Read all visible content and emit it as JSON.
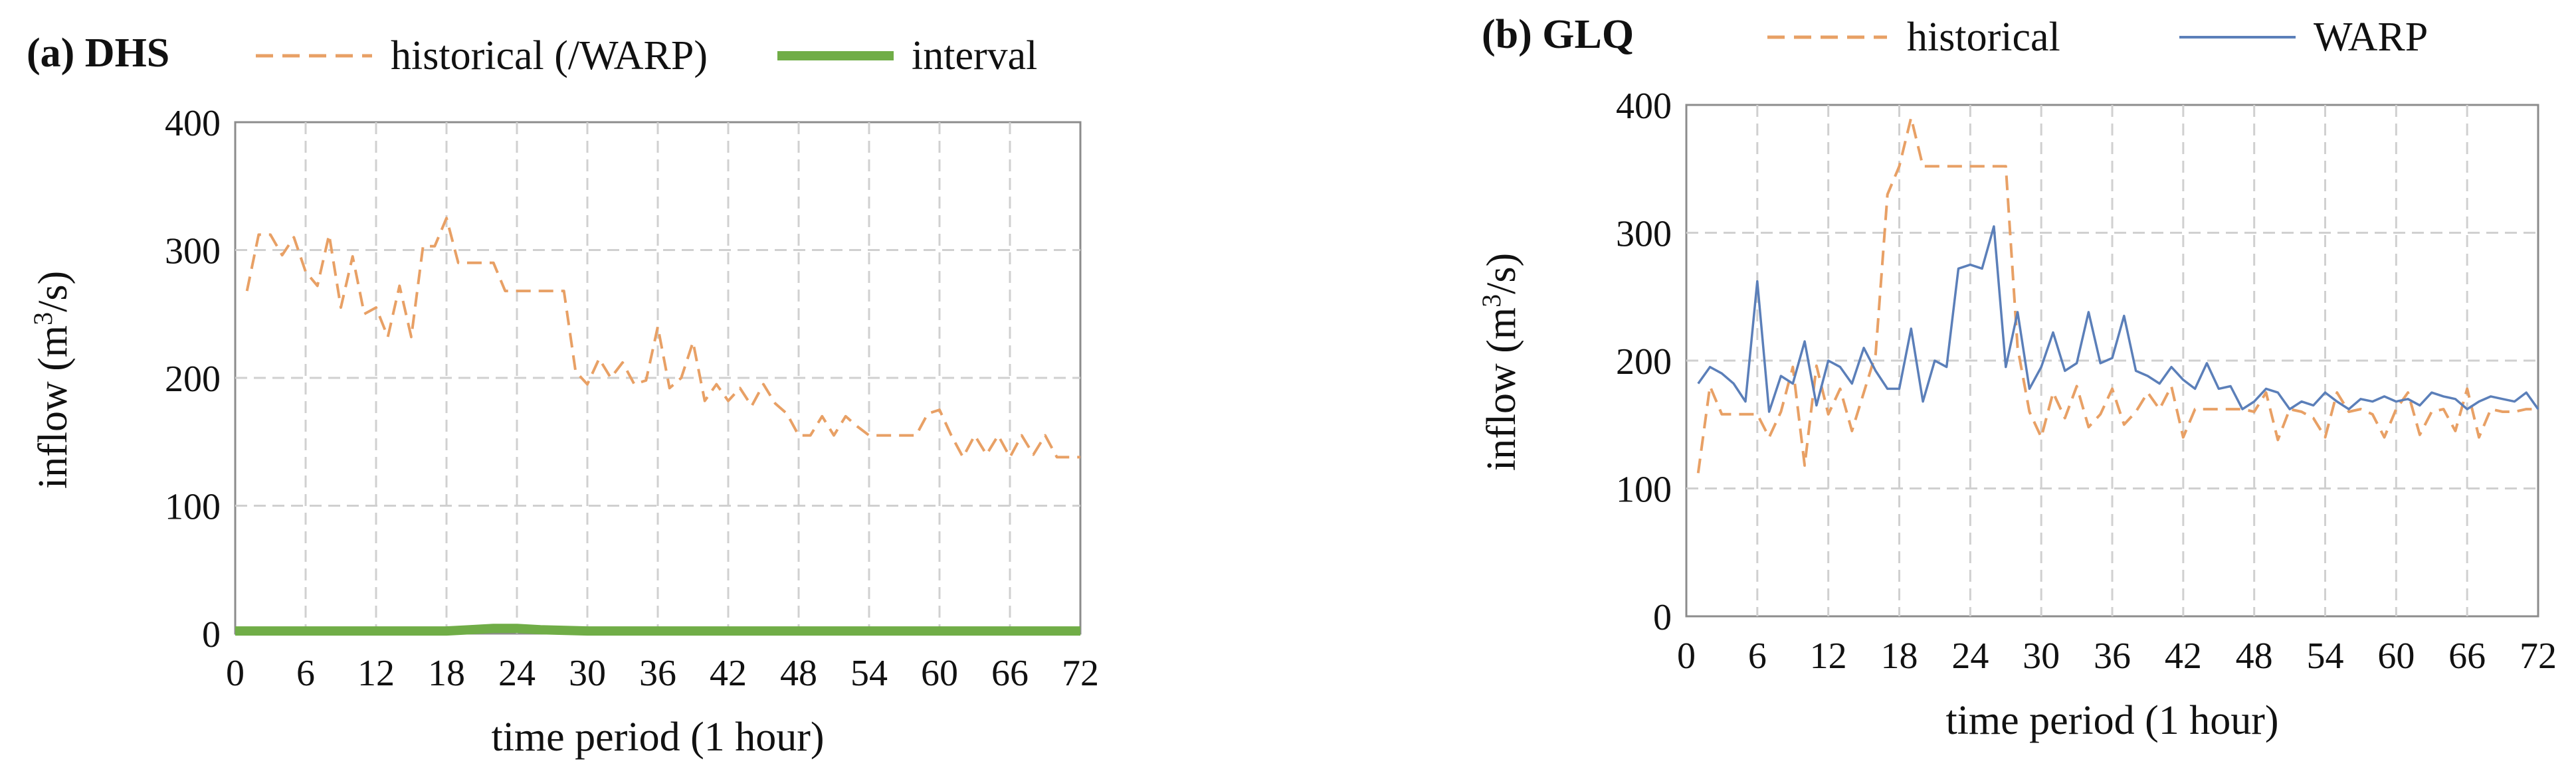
{
  "chart_data": [
    {
      "type": "line",
      "title": "(a) DHS",
      "xlabel": "time period (1 hour)",
      "ylabel_main": "inflow (m",
      "ylabel_sup": "3",
      "ylabel_end": "/s)",
      "xlim": [
        0,
        72
      ],
      "ylim": [
        0,
        400
      ],
      "xticks": [
        0,
        6,
        12,
        18,
        24,
        30,
        36,
        42,
        48,
        54,
        60,
        66,
        72
      ],
      "yticks": [
        0,
        100,
        200,
        300,
        400
      ],
      "grid": true,
      "legend_position": "top",
      "series": [
        {
          "name": "historical (/WARP)",
          "style": "dashed",
          "color": "#e8a065",
          "x": [
            1,
            2,
            3,
            4,
            5,
            6,
            7,
            8,
            9,
            10,
            11,
            12,
            13,
            14,
            15,
            16,
            17,
            18,
            19,
            20,
            21,
            22,
            23,
            24,
            25,
            26,
            27,
            28,
            29,
            30,
            31,
            32,
            33,
            34,
            35,
            36,
            37,
            38,
            39,
            40,
            41,
            42,
            43,
            44,
            45,
            46,
            47,
            48,
            49,
            50,
            51,
            52,
            53,
            54,
            55,
            56,
            57,
            58,
            59,
            60,
            61,
            62,
            63,
            64,
            65,
            66,
            67,
            68,
            69,
            70,
            71,
            72
          ],
          "values": [
            268,
            312,
            312,
            296,
            310,
            283,
            272,
            312,
            255,
            295,
            250,
            255,
            232,
            272,
            232,
            303,
            303,
            325,
            290,
            290,
            290,
            290,
            268,
            268,
            268,
            268,
            268,
            268,
            205,
            195,
            215,
            200,
            212,
            195,
            198,
            240,
            192,
            200,
            228,
            182,
            195,
            182,
            192,
            178,
            195,
            180,
            172,
            155,
            155,
            170,
            155,
            170,
            162,
            155,
            155,
            155,
            155,
            155,
            172,
            175,
            155,
            138,
            155,
            140,
            155,
            138,
            155,
            140,
            155,
            138,
            138,
            138
          ]
        },
        {
          "name": "interval",
          "style": "solid",
          "color": "#70ad47",
          "x": [
            0,
            6,
            12,
            18,
            20,
            22,
            24,
            26,
            30,
            36,
            42,
            48,
            54,
            60,
            66,
            72
          ],
          "values": [
            2,
            2,
            2,
            2,
            3,
            4,
            4,
            3,
            2,
            2,
            2,
            2,
            2,
            2,
            2,
            2
          ]
        }
      ]
    },
    {
      "type": "line",
      "title": "(b) GLQ",
      "xlabel": "time period (1 hour)",
      "ylabel_main": "inflow (m",
      "ylabel_sup": "3",
      "ylabel_end": "/s)",
      "xlim": [
        0,
        72
      ],
      "ylim": [
        0,
        400
      ],
      "xticks": [
        0,
        6,
        12,
        18,
        24,
        30,
        36,
        42,
        48,
        54,
        60,
        66,
        72
      ],
      "yticks": [
        0,
        100,
        200,
        300,
        400
      ],
      "grid": true,
      "legend_position": "top",
      "series": [
        {
          "name": "historical",
          "style": "dashed",
          "color": "#e8a065",
          "x": [
            1,
            2,
            3,
            4,
            5,
            6,
            7,
            8,
            9,
            10,
            11,
            12,
            13,
            14,
            15,
            16,
            17,
            18,
            19,
            20,
            21,
            22,
            23,
            24,
            25,
            26,
            27,
            28,
            29,
            30,
            31,
            32,
            33,
            34,
            35,
            36,
            37,
            38,
            39,
            40,
            41,
            42,
            43,
            44,
            45,
            46,
            47,
            48,
            49,
            50,
            51,
            52,
            53,
            54,
            55,
            56,
            57,
            58,
            59,
            60,
            61,
            62,
            63,
            64,
            65,
            66,
            67,
            68,
            69,
            70,
            71,
            72
          ],
          "values": [
            112,
            180,
            158,
            158,
            158,
            158,
            140,
            160,
            195,
            118,
            196,
            158,
            178,
            145,
            175,
            205,
            330,
            352,
            390,
            352,
            352,
            352,
            352,
            352,
            352,
            352,
            352,
            210,
            160,
            140,
            175,
            155,
            180,
            148,
            158,
            178,
            150,
            160,
            175,
            162,
            180,
            140,
            162,
            162,
            162,
            162,
            162,
            160,
            175,
            138,
            162,
            160,
            155,
            140,
            175,
            160,
            162,
            158,
            140,
            162,
            175,
            142,
            160,
            162,
            145,
            178,
            140,
            162,
            160,
            160,
            162,
            162
          ]
        },
        {
          "name": "WARP",
          "style": "solid",
          "color": "#5b7fb9",
          "x": [
            1,
            2,
            3,
            4,
            5,
            6,
            7,
            8,
            9,
            10,
            11,
            12,
            13,
            14,
            15,
            16,
            17,
            18,
            19,
            20,
            21,
            22,
            23,
            24,
            25,
            26,
            27,
            28,
            29,
            30,
            31,
            32,
            33,
            34,
            35,
            36,
            37,
            38,
            39,
            40,
            41,
            42,
            43,
            44,
            45,
            46,
            47,
            48,
            49,
            50,
            51,
            52,
            53,
            54,
            55,
            56,
            57,
            58,
            59,
            60,
            61,
            62,
            63,
            64,
            65,
            66,
            67,
            68,
            69,
            70,
            71,
            72
          ],
          "values": [
            182,
            195,
            190,
            182,
            168,
            262,
            160,
            188,
            182,
            215,
            165,
            200,
            195,
            182,
            210,
            192,
            178,
            178,
            225,
            168,
            200,
            195,
            272,
            275,
            272,
            305,
            195,
            238,
            178,
            195,
            222,
            192,
            198,
            238,
            198,
            202,
            235,
            192,
            188,
            182,
            195,
            185,
            178,
            198,
            178,
            180,
            162,
            168,
            178,
            175,
            162,
            168,
            165,
            175,
            168,
            162,
            170,
            168,
            172,
            168,
            170,
            165,
            175,
            172,
            170,
            162,
            168,
            172,
            170,
            168,
            175,
            162
          ]
        }
      ]
    }
  ]
}
